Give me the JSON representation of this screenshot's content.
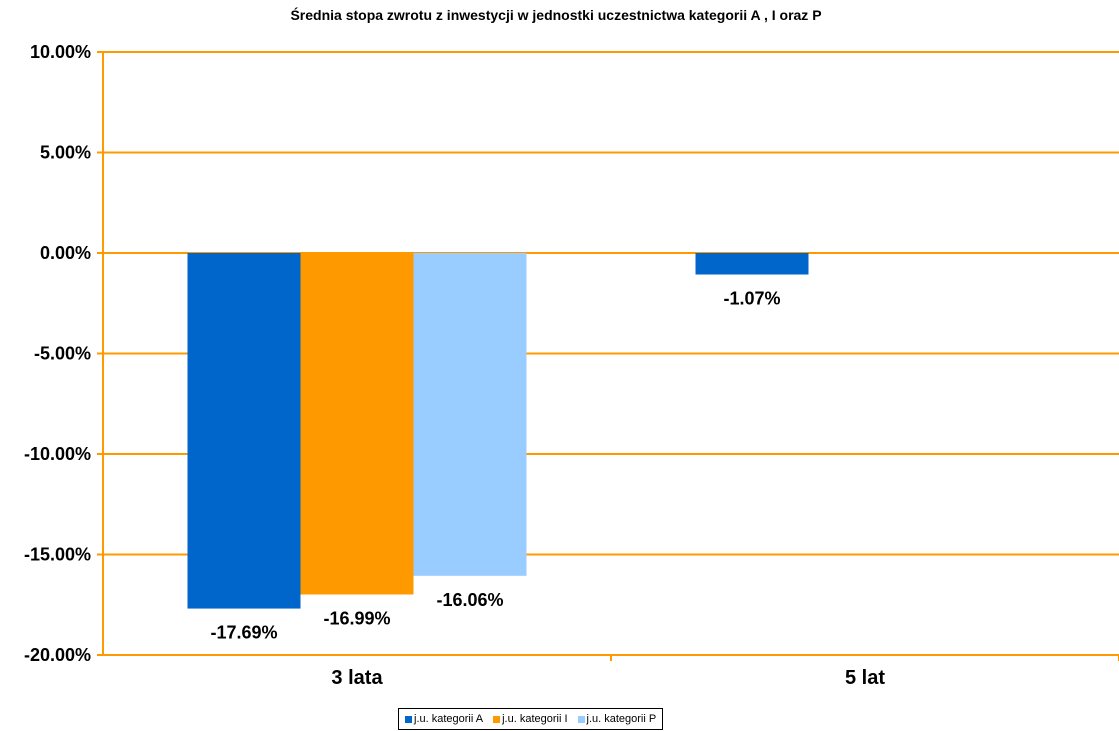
{
  "chart_data": {
    "type": "bar",
    "title": "Średnia stopa zwrotu z inwestycji w jednostki uczestnictwa kategorii A , I oraz P",
    "categories": [
      "3 lata",
      "5 lat"
    ],
    "series": [
      {
        "name": "j.u. kategorii A",
        "color": "#0066CC",
        "values": [
          -17.69,
          -1.07
        ],
        "labels": [
          "-17.69%",
          "-1.07%"
        ]
      },
      {
        "name": "j.u. kategorii I",
        "color": "#FF9900",
        "values": [
          -16.99,
          null
        ],
        "labels": [
          "-16.99%",
          ""
        ]
      },
      {
        "name": "j.u. kategorii P",
        "color": "#99CCFF",
        "values": [
          -16.06,
          null
        ],
        "labels": [
          "-16.06%",
          ""
        ]
      }
    ],
    "ylim": [
      -20,
      10
    ],
    "yticks": [
      10,
      5,
      0,
      -5,
      -10,
      -15,
      -20
    ],
    "ytick_labels": [
      "10.00%",
      "5.00%",
      "0.00%",
      "-5.00%",
      "-10.00%",
      "-15.00%",
      "-20.00%"
    ],
    "xlabel": "",
    "ylabel": "",
    "grid": true,
    "grid_color": "#FF9900",
    "axis_color": "#FF9900",
    "legend_position": "bottom"
  }
}
